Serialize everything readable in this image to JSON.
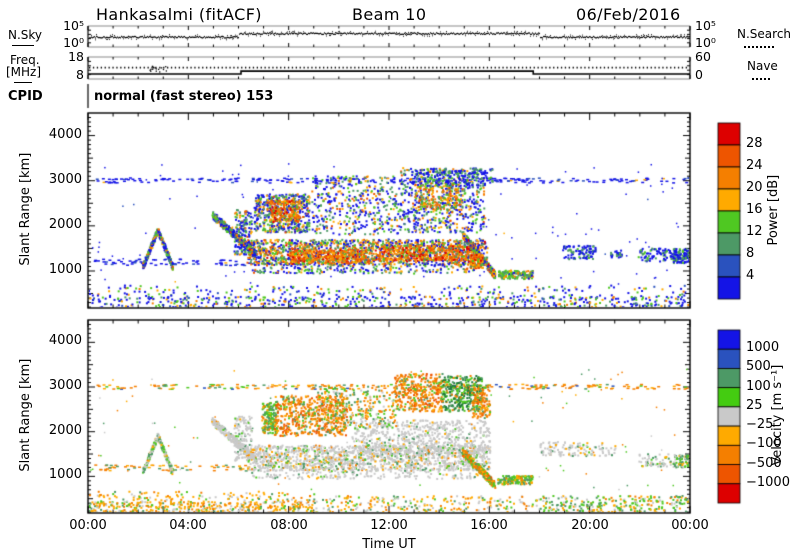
{
  "header": {
    "title": "Hankasalmi (fitACF)",
    "beam": "Beam 10",
    "date": "06/Feb/2016"
  },
  "chart_data": {
    "type": "heatmap",
    "description": "SuperDARN radar daily summary plot: noise/frequency strip charts plus power and velocity range-time panels",
    "cpid": {
      "label": "CPID",
      "value": "normal (fast stereo) 153"
    },
    "axes": {
      "time": {
        "label": "Time UT",
        "hours": [
          0,
          24
        ],
        "major_step": 4,
        "minor_step": 1,
        "ticks": [
          "00:00",
          "04:00",
          "08:00",
          "12:00",
          "16:00",
          "20:00",
          "00:00"
        ]
      },
      "range": {
        "label": "Slant Range [km]",
        "span": [
          180,
          4500
        ],
        "major_step": 1000,
        "minor_step": 100,
        "ticks": [
          "1000",
          "2000",
          "3000",
          "4000"
        ],
        "tick_values": [
          1000,
          2000,
          3000,
          4000
        ]
      }
    },
    "strip": {
      "nsky": {
        "label": "N.Sky",
        "right_label": "N.Search",
        "y_top": "10⁵",
        "y_bottom": "10⁰",
        "scale_log": [
          0,
          5
        ],
        "trace_levels": [
          [
            0,
            6,
            2.35
          ],
          [
            6,
            18,
            3.2
          ],
          [
            18,
            24,
            2.35
          ]
        ]
      },
      "freq": {
        "label1": "Freq.",
        "label2": "[MHz]",
        "right_label": "Nave",
        "y_top": "18",
        "y_bottom": "8",
        "right_top": "60",
        "right_bottom": "0",
        "freq_scale": [
          8,
          18
        ],
        "freq_levels": [
          [
            0,
            6.1,
            10.3
          ],
          [
            6.1,
            17.75,
            11.6
          ],
          [
            17.75,
            24,
            10.3
          ]
        ],
        "nave_value": 31,
        "nave_scale": [
          0,
          60
        ],
        "glitch_time": [
          2.45,
          3.2
        ]
      }
    },
    "colorbars": {
      "power": {
        "title": "Power [dB]",
        "labels": [
          "28",
          "24",
          "20",
          "16",
          "12",
          "8",
          "4"
        ],
        "colors_top_to_bottom": [
          "#dd0000",
          "#ee5500",
          "#f57f00",
          "#ffaa00",
          "#4fc822",
          "#4d9966",
          "#2a52be",
          "#1414e6"
        ]
      },
      "velocity": {
        "title": "Velocity  [m s⁻¹]",
        "labels": [
          "1000",
          "500",
          "100",
          "25",
          "−25",
          "−100",
          "−500",
          "−1000"
        ],
        "colors_top_to_bottom": [
          "#1414e6",
          "#2a52be",
          "#4d9966",
          "#44cc11",
          "#c9c9c9",
          "#ffaa00",
          "#f57f00",
          "#ee5500",
          "#dd0000"
        ]
      }
    },
    "palette": {
      "B": "#1414e6",
      "b": "#2a52be",
      "G": "#4d9966",
      "g": "#4fc822",
      "D": "#207a3c",
      "Y": "#ffaa00",
      "O": "#f57f00",
      "R": "#ee5500",
      "r": "#dd0000",
      "X": "#c9c9c9"
    },
    "mixes": {
      "pNoise": [
        [
          "B",
          50
        ],
        [
          "g",
          18
        ],
        [
          "G",
          10
        ],
        [
          "Y",
          10
        ],
        [
          "O",
          8
        ],
        [
          "b",
          4
        ]
      ],
      "pRow": [
        [
          "B",
          80
        ],
        [
          "b",
          12
        ],
        [
          "Y",
          8
        ]
      ],
      "pCool": [
        [
          "B",
          45
        ],
        [
          "G",
          20
        ],
        [
          "g",
          15
        ],
        [
          "Y",
          9
        ],
        [
          "O",
          8
        ],
        [
          "R",
          3
        ]
      ],
      "pBand": [
        [
          "B",
          25
        ],
        [
          "G",
          18
        ],
        [
          "g",
          15
        ],
        [
          "Y",
          14
        ],
        [
          "O",
          15
        ],
        [
          "R",
          9
        ],
        [
          "r",
          4
        ]
      ],
      "pHot": [
        [
          "O",
          30
        ],
        [
          "R",
          25
        ],
        [
          "r",
          18
        ],
        [
          "Y",
          15
        ],
        [
          "g",
          7
        ],
        [
          "G",
          5
        ]
      ],
      "pWarm": [
        [
          "O",
          25
        ],
        [
          "Y",
          20
        ],
        [
          "R",
          15
        ],
        [
          "g",
          20
        ],
        [
          "G",
          20
        ]
      ],
      "pGreen": [
        [
          "g",
          40
        ],
        [
          "G",
          30
        ],
        [
          "O",
          12
        ],
        [
          "Y",
          8
        ],
        [
          "B",
          10
        ]
      ],
      "pLate": [
        [
          "B",
          60
        ],
        [
          "G",
          25
        ],
        [
          "g",
          15
        ]
      ],
      "vNoiseAM": [
        [
          "Y",
          45
        ],
        [
          "O",
          20
        ],
        [
          "X",
          15
        ],
        [
          "g",
          12
        ],
        [
          "G",
          8
        ]
      ],
      "vNoiseMid": [
        [
          "X",
          30
        ],
        [
          "Y",
          25
        ],
        [
          "g",
          20
        ],
        [
          "G",
          10
        ],
        [
          "O",
          15
        ]
      ],
      "vNoisePM": [
        [
          "g",
          35
        ],
        [
          "G",
          20
        ],
        [
          "Y",
          20
        ],
        [
          "X",
          15
        ],
        [
          "O",
          10
        ]
      ],
      "vRow": [
        [
          "O",
          40
        ],
        [
          "Y",
          20
        ],
        [
          "G",
          15
        ],
        [
          "g",
          15
        ],
        [
          "b",
          10
        ]
      ],
      "vRow2": [
        [
          "O",
          55
        ],
        [
          "Y",
          25
        ],
        [
          "G",
          20
        ]
      ],
      "vGrayGreen": [
        [
          "X",
          50
        ],
        [
          "G",
          20
        ],
        [
          "g",
          20
        ],
        [
          "Y",
          10
        ]
      ],
      "vGrayPure": [
        [
          "X",
          88
        ],
        [
          "g",
          4
        ],
        [
          "G",
          4
        ],
        [
          "Y",
          4
        ]
      ],
      "vGrayBand": [
        [
          "X",
          74
        ],
        [
          "Y",
          7
        ],
        [
          "g",
          7
        ],
        [
          "G",
          6
        ],
        [
          "O",
          6
        ]
      ],
      "vOrange": [
        [
          "O",
          50
        ],
        [
          "R",
          18
        ],
        [
          "Y",
          15
        ],
        [
          "g",
          9
        ],
        [
          "G",
          8
        ]
      ],
      "vGreen": [
        [
          "g",
          42
        ],
        [
          "G",
          32
        ],
        [
          "O",
          13
        ],
        [
          "Y",
          13
        ]
      ],
      "vDark": [
        [
          "D",
          42
        ],
        [
          "g",
          28
        ],
        [
          "G",
          16
        ],
        [
          "O",
          14
        ]
      ],
      "vMix": [
        [
          "O",
          30
        ],
        [
          "g",
          20
        ],
        [
          "G",
          20
        ],
        [
          "Y",
          15
        ],
        [
          "X",
          15
        ]
      ],
      "vStreak": [
        [
          "O",
          35
        ],
        [
          "g",
          25
        ],
        [
          "G",
          15
        ],
        [
          "Y",
          15
        ],
        [
          "R",
          10
        ]
      ],
      "vLateGray": [
        [
          "X",
          72
        ],
        [
          "G",
          12
        ],
        [
          "g",
          6
        ],
        [
          "Y",
          10
        ]
      ],
      "vLateGreen": [
        [
          "G",
          45
        ],
        [
          "g",
          30
        ],
        [
          "X",
          15
        ],
        [
          "Y",
          10
        ]
      ]
    },
    "scatter": {
      "seed": 20160206,
      "power": [
        [
          "box",
          0,
          24,
          180,
          430,
          540,
          2,
          "pNoise"
        ],
        [
          "box",
          0,
          24,
          390,
          680,
          240,
          2,
          "pNoise"
        ],
        [
          "box",
          0.3,
          24,
          2950,
          3060,
          250,
          [
            3,
            1.5
          ],
          "pRow"
        ],
        [
          "box",
          0.2,
          6.5,
          1120,
          1260,
          70,
          [
            3,
            1.5
          ],
          "pRow"
        ],
        [
          "diag",
          2.15,
          2.75,
          1080,
          1900,
          130,
          2,
          "pCool",
          150
        ],
        [
          "diag",
          2.75,
          3.35,
          1900,
          1080,
          140,
          2,
          "pCool",
          150
        ],
        [
          "diag",
          4.9,
          6.7,
          2250,
          1350,
          340,
          2,
          "pCool",
          170
        ],
        [
          "box",
          5.8,
          6.5,
          1350,
          2350,
          150,
          2,
          "pCool"
        ],
        [
          "box",
          6.3,
          15.9,
          1130,
          1690,
          1500,
          2,
          "pBand"
        ],
        [
          "box",
          8.0,
          11.2,
          1160,
          1470,
          360,
          2,
          "pHot"
        ],
        [
          "box",
          11.5,
          15.3,
          1230,
          1560,
          380,
          2,
          "pHot"
        ],
        [
          "box",
          6.5,
          15.5,
          940,
          1170,
          240,
          2,
          "pCool"
        ],
        [
          "box",
          6.6,
          8.8,
          1850,
          2700,
          520,
          2,
          "pCool"
        ],
        [
          "box",
          7.2,
          8.4,
          2080,
          2560,
          210,
          2,
          "pHot"
        ],
        [
          "box",
          8.9,
          12.4,
          1800,
          3100,
          400,
          2,
          "pCool"
        ],
        [
          "box",
          12.4,
          15.8,
          1850,
          3280,
          600,
          2,
          "pCool"
        ],
        [
          "box",
          13.0,
          14.9,
          2350,
          2950,
          200,
          2,
          "pWarm"
        ],
        [
          "box",
          13.0,
          16.1,
          2880,
          3270,
          190,
          2,
          "pLate"
        ],
        [
          "diag",
          14.9,
          16.2,
          1800,
          900,
          290,
          2,
          "pBand",
          170
        ],
        [
          "box",
          15.2,
          15.7,
          1060,
          1360,
          120,
          2,
          "pHot"
        ],
        [
          "box",
          16.3,
          17.7,
          820,
          1010,
          150,
          2,
          "pGreen"
        ],
        [
          "box",
          18.9,
          20.2,
          1260,
          1560,
          100,
          2,
          "pLate"
        ],
        [
          "box",
          20.8,
          21.3,
          1290,
          1460,
          30,
          2,
          "pLate"
        ],
        [
          "box",
          21.9,
          23.4,
          1210,
          1500,
          90,
          2,
          "pLate"
        ],
        [
          "box",
          23.3,
          24,
          1170,
          1490,
          120,
          2,
          "pLate"
        ],
        [
          "box",
          0,
          24,
          700,
          3400,
          130,
          [
            1.5,
            1.5
          ],
          "pRow"
        ]
      ],
      "velocity": [
        [
          "box",
          0,
          9,
          180,
          430,
          380,
          2,
          "vNoiseAM"
        ],
        [
          "box",
          0,
          9,
          390,
          660,
          150,
          2,
          "vNoiseAM"
        ],
        [
          "box",
          9,
          18,
          180,
          560,
          240,
          2,
          "vNoiseMid"
        ],
        [
          "box",
          18,
          24,
          180,
          560,
          280,
          2,
          "vNoisePM"
        ],
        [
          "box",
          0.3,
          24,
          2950,
          3060,
          240,
          [
            3,
            1.5
          ],
          "vRow"
        ],
        [
          "box",
          0.2,
          6.5,
          1120,
          1260,
          60,
          [
            3,
            1.5
          ],
          "vRow2"
        ],
        [
          "diag",
          2.15,
          2.75,
          1080,
          1900,
          120,
          2,
          "vGrayGreen",
          150
        ],
        [
          "diag",
          2.75,
          3.35,
          1900,
          1080,
          130,
          2,
          "vGrayGreen",
          150
        ],
        [
          "diag",
          4.9,
          6.7,
          2250,
          1350,
          310,
          2,
          "vGrayPure",
          170
        ],
        [
          "box",
          5.8,
          6.5,
          1350,
          2350,
          140,
          2,
          "vGrayPure"
        ],
        [
          "box",
          6.3,
          16.0,
          1130,
          1690,
          1450,
          2,
          "vGrayBand"
        ],
        [
          "box",
          6.5,
          15.5,
          940,
          1170,
          210,
          2,
          "vGrayPure"
        ],
        [
          "box",
          10.5,
          16.0,
          1500,
          2260,
          650,
          2,
          "vGrayPure"
        ],
        [
          "box",
          6.9,
          7.5,
          1950,
          2650,
          180,
          2,
          "vGreen"
        ],
        [
          "box",
          7.4,
          10.3,
          1900,
          2800,
          540,
          2,
          "vOrange"
        ],
        [
          "box",
          9.0,
          12.3,
          2100,
          3050,
          300,
          2,
          "vMix"
        ],
        [
          "box",
          12.2,
          14.1,
          2450,
          3300,
          340,
          2,
          "vOrange"
        ],
        [
          "box",
          14.1,
          15.7,
          2450,
          3250,
          330,
          2,
          "vDark"
        ],
        [
          "box",
          15.3,
          16.0,
          2300,
          3050,
          130,
          2,
          "vOrange"
        ],
        [
          "diag",
          14.9,
          16.2,
          1550,
          800,
          280,
          2,
          "vStreak",
          170
        ],
        [
          "box",
          16.3,
          17.7,
          820,
          1010,
          150,
          2,
          "vGreen"
        ],
        [
          "box",
          18.0,
          21.0,
          1450,
          1770,
          130,
          2,
          "vLateGray"
        ],
        [
          "box",
          21.9,
          23.4,
          1210,
          1500,
          60,
          2,
          "vLateGray"
        ],
        [
          "box",
          23.3,
          24,
          1200,
          1480,
          90,
          2,
          "vLateGreen"
        ],
        [
          "box",
          0,
          24,
          700,
          3400,
          110,
          [
            1.5,
            1.5
          ],
          "vMix"
        ]
      ]
    }
  }
}
